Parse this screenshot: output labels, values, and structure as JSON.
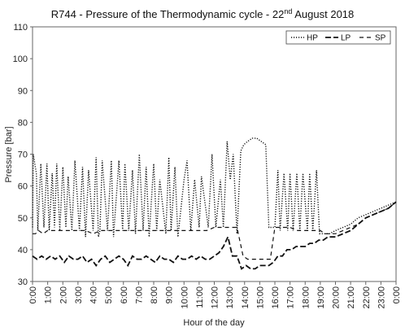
{
  "chart_data": {
    "type": "line",
    "title": "R744 - Pressure of the Thermodynamic cycle - 22",
    "title_superscript": "nd",
    "title_suffix": " August 2018",
    "xlabel": "Hour of the day",
    "ylabel": "Pressure [bar]",
    "xlim": [
      0,
      24
    ],
    "ylim": [
      30,
      110
    ],
    "y_ticks": [
      30,
      40,
      50,
      60,
      70,
      80,
      90,
      100,
      110
    ],
    "x_tick_labels": [
      "0:00",
      "1:00",
      "2:00",
      "3:00",
      "4:00",
      "5:00",
      "6:00",
      "7:00",
      "8:00",
      "9:00",
      "10:00",
      "11:00",
      "12:00",
      "13:00",
      "14:00",
      "15:00",
      "16:00",
      "17:00",
      "18:00",
      "19:00",
      "20:00",
      "21:00",
      "22:00",
      "23:00",
      "0:00"
    ],
    "grid": false,
    "legend_position": "top-right",
    "series": [
      {
        "name": "HP",
        "style": "dotted",
        "x": [
          0,
          0.05,
          0.25,
          0.35,
          0.55,
          0.75,
          0.95,
          1.1,
          1.3,
          1.45,
          1.6,
          1.8,
          2.0,
          2.2,
          2.35,
          2.6,
          2.8,
          3.1,
          3.3,
          3.5,
          3.7,
          4.0,
          4.2,
          4.35,
          4.45,
          4.6,
          4.95,
          5.2,
          5.35,
          5.7,
          5.95,
          6.1,
          6.35,
          6.6,
          6.8,
          7.05,
          7.3,
          7.5,
          7.7,
          8.0,
          8.2,
          8.4,
          8.8,
          9.0,
          9.15,
          9.4,
          9.6,
          10.0,
          10.2,
          10.45,
          10.7,
          11.0,
          11.15,
          11.6,
          11.85,
          12.1,
          12.4,
          12.6,
          12.85,
          13.05,
          13.25,
          13.5,
          13.75,
          13.95,
          14.2,
          14.5,
          14.8,
          15.1,
          15.4,
          15.6,
          15.8,
          16.0,
          16.2,
          16.35,
          16.6,
          16.85,
          17.0,
          17.2,
          17.45,
          17.65,
          17.85,
          18.15,
          18.3,
          18.5,
          18.75,
          18.95,
          19.15,
          19.3,
          19.6,
          20.0,
          20.5,
          21.0,
          21.5,
          22.0,
          22.5,
          23.0,
          23.5,
          24.0
        ],
        "y": [
          47,
          70,
          64,
          46,
          67,
          47,
          67,
          46,
          64,
          47,
          67,
          46,
          66,
          47,
          63,
          46,
          68,
          46,
          66,
          44,
          65,
          46,
          69,
          44,
          46,
          68,
          46,
          68,
          44,
          68,
          46,
          67,
          46,
          65,
          45,
          70,
          46,
          66,
          44,
          67,
          46,
          62,
          45,
          69,
          46,
          66,
          44,
          62,
          68,
          46,
          62,
          47,
          63,
          47,
          70,
          47,
          62,
          47,
          74,
          62,
          70,
          45,
          71,
          73,
          74,
          75,
          75,
          74,
          73,
          47,
          47,
          47,
          65,
          46,
          64,
          46,
          64,
          46,
          64,
          46,
          64,
          46,
          64,
          46,
          65,
          45,
          45,
          45,
          45,
          46,
          47,
          48,
          50,
          51,
          52,
          53,
          54,
          55
        ]
      },
      {
        "name": "LP",
        "style": "dash",
        "x": [
          0,
          0.3,
          0.6,
          0.9,
          1.2,
          1.5,
          1.8,
          2.1,
          2.4,
          2.7,
          3.0,
          3.3,
          3.6,
          3.9,
          4.2,
          4.5,
          4.8,
          5.1,
          5.4,
          5.7,
          6.0,
          6.3,
          6.6,
          6.9,
          7.2,
          7.5,
          7.8,
          8.1,
          8.4,
          8.7,
          9.0,
          9.3,
          9.6,
          9.9,
          10.2,
          10.5,
          10.8,
          11.1,
          11.4,
          11.7,
          12.0,
          12.3,
          12.6,
          12.9,
          13.2,
          13.5,
          13.8,
          14.1,
          14.4,
          14.7,
          15.0,
          15.3,
          15.6,
          15.9,
          16.2,
          16.5,
          16.8,
          17.1,
          17.4,
          17.7,
          18.0,
          18.3,
          18.6,
          18.9,
          19.2,
          19.5,
          20.0,
          20.5,
          21.0,
          21.5,
          22.0,
          22.5,
          23.0,
          23.5,
          24.0
        ],
        "y": [
          38,
          37,
          38,
          37,
          38,
          37,
          38,
          36,
          38,
          37,
          37,
          38,
          36,
          37,
          35,
          37,
          38,
          36,
          37,
          38,
          37,
          35,
          38,
          37,
          37,
          38,
          37,
          36,
          38,
          37,
          37,
          36,
          38,
          37,
          37,
          38,
          37,
          38,
          37,
          37,
          38,
          39,
          41,
          44,
          38,
          38,
          34,
          35,
          34,
          34,
          35,
          35,
          35,
          36,
          38,
          38,
          40,
          40,
          41,
          41,
          41,
          42,
          42,
          43,
          43,
          44,
          44,
          45,
          46,
          48,
          50,
          51,
          52,
          53,
          55
        ]
      },
      {
        "name": "SP",
        "style": "long-dash",
        "x": [
          0,
          0.2,
          0.4,
          0.7,
          1.0,
          1.5,
          2.0,
          2.5,
          3.0,
          3.5,
          4.0,
          4.5,
          5.0,
          5.5,
          6.0,
          6.5,
          7.0,
          7.5,
          8.0,
          8.5,
          9.0,
          9.5,
          10.0,
          10.5,
          11.0,
          11.5,
          12.0,
          12.5,
          13.0,
          13.5,
          13.9,
          14.2,
          14.5,
          14.8,
          15.1,
          15.4,
          15.7,
          16.0,
          16.5,
          17.0,
          17.5,
          18.0,
          18.5,
          19.0,
          19.3,
          19.6,
          20.0,
          20.5,
          21.0,
          21.5,
          22.0,
          22.5,
          23.0,
          23.5,
          24.0
        ],
        "y": [
          45,
          45,
          46,
          45,
          46,
          46,
          46,
          46,
          46,
          46,
          45,
          46,
          46,
          46,
          46,
          46,
          46,
          46,
          46,
          46,
          46,
          46,
          46,
          46,
          46,
          46,
          47,
          47,
          47,
          47,
          38,
          37,
          37,
          37,
          37,
          37,
          37,
          47,
          47,
          47,
          46,
          46,
          46,
          46,
          45,
          45,
          45,
          46,
          47,
          48,
          50,
          51,
          52,
          53,
          55
        ]
      }
    ]
  }
}
